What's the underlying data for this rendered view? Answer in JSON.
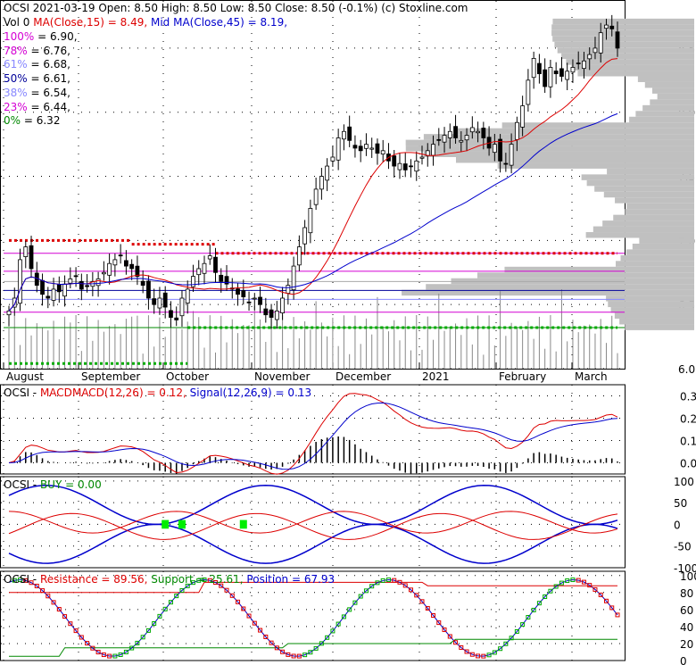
{
  "header": {
    "line1": "OCSI  2021-03-19 Open: 8.50  High: 8.50  Low: 8.50  Close: 8.50  (-0.1%)  (c) Stoxline.com",
    "vol": "Vol 0",
    "ma15": "MA(Close,15) = 8.49,",
    "ma45": "Mid MA(Close,45) = 8.19,"
  },
  "fib_levels": [
    {
      "pct": "100%",
      "val": "= 6.90,",
      "color": "#d400d4"
    },
    {
      "pct": "78%",
      "val": "= 6.76,",
      "color": "#d400d4"
    },
    {
      "pct": "61%",
      "val": "= 6.68,",
      "color": "#8888ff"
    },
    {
      "pct": "50%",
      "val": "= 6.61,",
      "color": "#000099"
    },
    {
      "pct": "38%",
      "val": "= 6.54,",
      "color": "#8888ff"
    },
    {
      "pct": "23%",
      "val": "= 6.44,",
      "color": "#d400d4"
    },
    {
      "pct": "0%",
      "val": "= 6.32",
      "color": "#008800"
    }
  ],
  "panels": {
    "macd": {
      "prefix": "OCSI - ",
      "name": "MACD",
      "macd_text": "MACD(12,26) = 0.12,",
      "signal_text": "Signal(12,26,9) = 0.13"
    },
    "buy": {
      "prefix": "OCSI - ",
      "text": "BUY = 0.00"
    },
    "srp": {
      "prefix": "OCSI - ",
      "resistance": "Resistance = 89.56,",
      "support": "Support = 25.61,",
      "position": "Position = 67.93"
    }
  },
  "colors": {
    "up": "#00aa00",
    "down": "#dd0000",
    "ma_fast": "#dd0000",
    "ma_mid": "#0000cc",
    "volume_profile": "#c0c0c0",
    "dotted_res": "#dd0000",
    "dotted_sup": "#00aa00"
  },
  "chart_data": [
    {
      "type": "candlestick",
      "title": "OCSI 2021-03-19",
      "x_labels": [
        "August",
        "September",
        "October",
        "November",
        "December",
        "2021",
        "February",
        "March"
      ],
      "ylim": [
        6.0,
        8.75
      ],
      "y_ticks": [
        "6.0",
        "6.5",
        "7.0",
        "7.5",
        "8.0",
        "8.5"
      ],
      "close_series": [
        6.45,
        6.55,
        6.85,
        6.95,
        6.78,
        6.65,
        6.58,
        6.55,
        6.62,
        6.6,
        6.66,
        6.7,
        6.72,
        6.62,
        6.64,
        6.68,
        6.7,
        6.75,
        6.82,
        6.85,
        6.88,
        6.8,
        6.78,
        6.72,
        6.65,
        6.55,
        6.5,
        6.55,
        6.48,
        6.4,
        6.38,
        6.55,
        6.62,
        6.72,
        6.78,
        6.82,
        6.88,
        6.75,
        6.68,
        6.66,
        6.62,
        6.58,
        6.56,
        6.52,
        6.55,
        6.5,
        6.42,
        6.4,
        6.45,
        6.55,
        6.65,
        6.8,
        6.95,
        7.1,
        7.25,
        7.4,
        7.5,
        7.58,
        7.65,
        7.8,
        7.85,
        7.78,
        7.72,
        7.7,
        7.75,
        7.72,
        7.68,
        7.7,
        7.62,
        7.58,
        7.6,
        7.55,
        7.58,
        7.62,
        7.65,
        7.7,
        7.75,
        7.78,
        7.82,
        7.85,
        7.8,
        7.78,
        7.82,
        7.88,
        7.85,
        7.8,
        7.72,
        7.75,
        7.62,
        7.6,
        7.75,
        7.92,
        8.05,
        8.25,
        8.42,
        8.3,
        8.2,
        8.35,
        8.3,
        8.28,
        8.32,
        8.35,
        8.38,
        8.4,
        8.45,
        8.5,
        8.62,
        8.68,
        8.65,
        8.5
      ],
      "ma15_last": 8.49,
      "ma45_last": 8.19,
      "fib": {
        "100%": 6.9,
        "78%": 6.76,
        "61%": 6.68,
        "50%": 6.61,
        "38%": 6.54,
        "23%": 6.44,
        "0%": 6.32
      },
      "dotted_resistance": [
        {
          "from": 0,
          "to": 22,
          "value": 7.0
        },
        {
          "from": 22,
          "to": 37,
          "value": 6.97
        },
        {
          "from": 37,
          "to": 109,
          "value": 6.9
        }
      ],
      "dotted_support": [
        {
          "from": 0,
          "to": 32,
          "value": 6.04
        },
        {
          "from": 32,
          "to": 109,
          "value": 6.32
        }
      ]
    },
    {
      "type": "line",
      "title": "MACD(12,26)",
      "ylim": [
        -0.05,
        0.35
      ],
      "y_ticks": [
        "0.3",
        "0.2",
        "0.1",
        "0.0"
      ],
      "macd_last": 0.12,
      "signal_last": 0.13
    },
    {
      "type": "line",
      "title": "BUY",
      "ylim": [
        -100,
        110
      ],
      "y_ticks": [
        "100",
        "50",
        "0",
        "-50",
        "-100"
      ],
      "buy_last": 0.0
    },
    {
      "type": "line",
      "title": "Resistance / Support / Position",
      "ylim": [
        0,
        105
      ],
      "y_ticks": [
        "100",
        "80",
        "60",
        "40",
        "20",
        "0"
      ],
      "resistance_last": 89.56,
      "support_last": 25.61,
      "position_last": 67.93
    }
  ]
}
